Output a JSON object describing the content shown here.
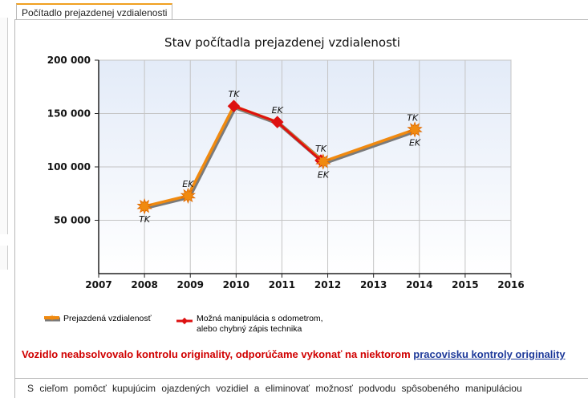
{
  "tab": {
    "label": "Počítadlo prejazdenej vzdialenosti"
  },
  "chart_data": {
    "type": "line",
    "title": "Stav počítadla prejazdenej vzdialenosti",
    "xlim": [
      2007,
      2016
    ],
    "ylim": [
      0,
      200000
    ],
    "x_ticks": [
      "2007",
      "2008",
      "2009",
      "2010",
      "2011",
      "2012",
      "2013",
      "2014",
      "2015",
      "2016"
    ],
    "y_ticks": [
      {
        "value": 50000,
        "label": "50 000"
      },
      {
        "value": 100000,
        "label": "100 000"
      },
      {
        "value": 150000,
        "label": "150 000"
      },
      {
        "value": 200000,
        "label": "200 000"
      }
    ],
    "grid": true,
    "series": [
      {
        "name": "Prejazdená vzdialenosť",
        "color": "#f08a10",
        "points": [
          {
            "x": 2008.0,
            "y": 63000,
            "label": "TK",
            "label_pos": "below"
          },
          {
            "x": 2008.95,
            "y": 73000,
            "label": "EK",
            "label_pos": "above"
          },
          {
            "x": 2011.9,
            "y": 105000,
            "label": "EK",
            "label_pos": "below"
          },
          {
            "x": 2013.9,
            "y": 135000,
            "label": "EK",
            "label_pos": "below"
          }
        ]
      },
      {
        "name": "Možná manipulácia s odometrom, alebo chybný zápis technika",
        "color": "#dd1111",
        "points": [
          {
            "x": 2009.95,
            "y": 157000,
            "label": "TK",
            "label_pos": "above"
          },
          {
            "x": 2010.9,
            "y": 142000,
            "label": "EK",
            "label_pos": "above"
          },
          {
            "x": 2011.85,
            "y": 106000,
            "label": "TK",
            "label_pos": "above"
          },
          {
            "x": 2013.85,
            "y": 135000,
            "label": "TK",
            "label_pos": "above"
          }
        ]
      }
    ],
    "legend": [
      {
        "label": "Prejazdená vzdialenosť",
        "color": "#f08a10"
      },
      {
        "label_lines": [
          "Možná manipulácia s odometrom,",
          "alebo chybný zápis technika"
        ],
        "color": "#dd1111"
      }
    ]
  },
  "warning": {
    "text": "Vozidlo neabsolvovalo kontrolu originality, odporúčame vykonať na niektorom ",
    "link": "pracovisku kontroly originality"
  },
  "info": {
    "text": "S cieľom pomôcť kupujúcim ojazdených vozidiel a eliminovať možnosť podvodu spôsobeného manipuláciou"
  }
}
